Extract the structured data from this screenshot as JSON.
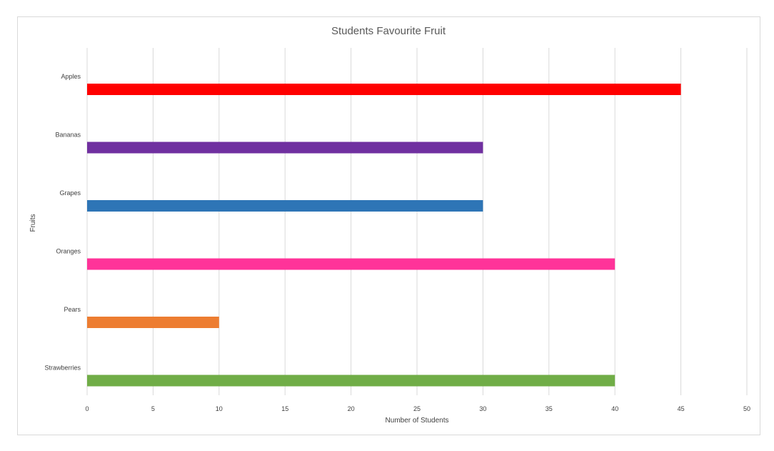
{
  "chart_data": {
    "type": "bar",
    "orientation": "horizontal",
    "title": "Students Favourite Fruit",
    "xlabel": "Number of Students",
    "ylabel": "Fruits",
    "categories": [
      "Apples",
      "Bananas",
      "Grapes",
      "Oranges",
      "Pears",
      "Strawberries"
    ],
    "values": [
      45,
      30,
      30,
      40,
      10,
      40
    ],
    "colors": [
      "#ff0000",
      "#7030a0",
      "#2e75b6",
      "#ff3399",
      "#ed7d31",
      "#70ad47"
    ],
    "xlim": [
      0,
      50
    ],
    "xticks": [
      0,
      5,
      10,
      15,
      20,
      25,
      30,
      35,
      40,
      45,
      50
    ],
    "grid": "vertical",
    "legend": "none"
  }
}
